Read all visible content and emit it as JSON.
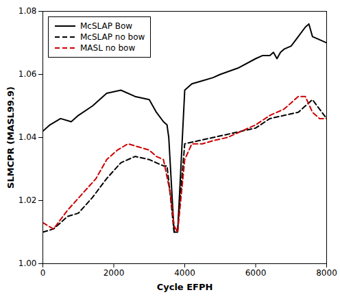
{
  "chart_data": {
    "type": "line",
    "xlabel": "Cycle EFPH",
    "ylabel": "SLMCPR (MASL99.9)",
    "xlim": [
      0,
      8000
    ],
    "ylim": [
      1.0,
      1.08
    ],
    "xticks": [
      0,
      2000,
      4000,
      6000,
      8000
    ],
    "yticks": [
      {
        "value": 1.0,
        "label": "1.00"
      },
      1.02,
      1.04,
      1.06,
      1.08
    ],
    "grid": false,
    "legend": "upper left",
    "series": [
      {
        "name": "McSLAP Bow",
        "color": "#000000",
        "line_style": "solid",
        "x": [
          0,
          200,
          500,
          800,
          1000,
          1400,
          1800,
          2200,
          2600,
          3000,
          3200,
          3400,
          3500,
          3550,
          3600,
          3700,
          3800,
          4000,
          4200,
          4500,
          4800,
          5000,
          5500,
          6000,
          6200,
          6400,
          6500,
          6600,
          6700,
          6800,
          7000,
          7200,
          7400,
          7500,
          7600,
          7800,
          8000
        ],
        "values": [
          1.042,
          1.044,
          1.046,
          1.045,
          1.047,
          1.05,
          1.054,
          1.055,
          1.053,
          1.052,
          1.048,
          1.045,
          1.044,
          1.04,
          1.03,
          1.01,
          1.01,
          1.055,
          1.057,
          1.058,
          1.059,
          1.06,
          1.062,
          1.065,
          1.066,
          1.066,
          1.067,
          1.065,
          1.067,
          1.068,
          1.069,
          1.072,
          1.075,
          1.076,
          1.072,
          1.071,
          1.07
        ]
      },
      {
        "name": "McSLAP no bow",
        "color": "#000000",
        "line_style": "dashed",
        "x": [
          0,
          300,
          700,
          1000,
          1400,
          1800,
          2200,
          2600,
          3000,
          3200,
          3400,
          3500,
          3600,
          3700,
          3800,
          4000,
          4400,
          4800,
          5200,
          5600,
          6000,
          6400,
          6800,
          7200,
          7600,
          8000
        ],
        "values": [
          1.01,
          1.011,
          1.015,
          1.016,
          1.021,
          1.027,
          1.032,
          1.034,
          1.033,
          1.032,
          1.031,
          1.031,
          1.021,
          1.01,
          1.011,
          1.038,
          1.039,
          1.04,
          1.041,
          1.042,
          1.043,
          1.046,
          1.047,
          1.048,
          1.052,
          1.046
        ]
      },
      {
        "name": "MASL no bow",
        "color": "#cc0000",
        "line_style": "dashed",
        "x": [
          0,
          300,
          700,
          1100,
          1500,
          1800,
          2100,
          2400,
          2700,
          3000,
          3200,
          3400,
          3600,
          3700,
          3800,
          4000,
          4200,
          4500,
          4800,
          5200,
          5600,
          6000,
          6400,
          6800,
          7000,
          7200,
          7400,
          7600,
          7800,
          8000
        ],
        "values": [
          1.013,
          1.011,
          1.017,
          1.022,
          1.027,
          1.033,
          1.036,
          1.038,
          1.037,
          1.036,
          1.034,
          1.033,
          1.022,
          1.012,
          1.01,
          1.033,
          1.038,
          1.038,
          1.039,
          1.04,
          1.042,
          1.044,
          1.047,
          1.049,
          1.051,
          1.053,
          1.053,
          1.048,
          1.046,
          1.046
        ]
      }
    ]
  }
}
